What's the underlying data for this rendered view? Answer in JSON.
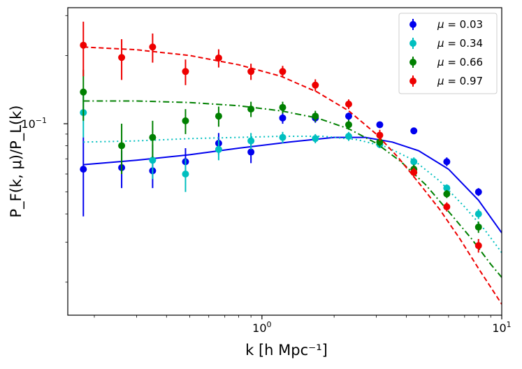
{
  "chart_data": {
    "type": "scatter",
    "title": "",
    "xlabel": "k [h Mpc⁻¹]",
    "ylabel": "P_F(k, μ)/P_L(k)",
    "xscale": "log",
    "yscale": "log",
    "xlim": [
      0.155,
      10
    ],
    "ylim": [
      0.0143,
      0.325
    ],
    "x_ticks": [
      {
        "value": 1,
        "base": "10",
        "exp": "0"
      },
      {
        "value": 10,
        "base": "10",
        "exp": "1"
      }
    ],
    "y_ticks": [
      {
        "value": 0.1,
        "base": "10",
        "exp": "−1"
      }
    ],
    "legend_position": "top-right",
    "series": [
      {
        "name": "μ = 0.03",
        "mu_label": "μ",
        "value_label": "= 0.03",
        "color": "#0000ee",
        "line_style": "solid",
        "x": [
          0.18,
          0.26,
          0.35,
          0.48,
          0.66,
          0.9,
          1.22,
          1.67,
          2.3,
          3.1,
          4.3,
          5.9,
          8.0
        ],
        "y": [
          0.063,
          0.064,
          0.062,
          0.068,
          0.082,
          0.075,
          0.106,
          0.106,
          0.108,
          0.099,
          0.093,
          0.068,
          0.05
        ],
        "err": [
          0.024,
          0.012,
          0.01,
          0.01,
          0.009,
          0.008,
          0.006,
          0.005,
          0.004,
          0.003,
          0.003,
          0.003,
          0.002
        ],
        "model_x": [
          0.18,
          0.3,
          0.5,
          0.8,
          1.3,
          2.0,
          2.7,
          3.5,
          4.5,
          6.0,
          8.0,
          10.0
        ],
        "model_y": [
          0.066,
          0.069,
          0.073,
          0.078,
          0.083,
          0.087,
          0.087,
          0.083,
          0.076,
          0.063,
          0.046,
          0.033
        ]
      },
      {
        "name": "μ = 0.34",
        "mu_label": "μ",
        "value_label": "= 0.34",
        "color": "#00bfbf",
        "line_style": "dotted",
        "x": [
          0.18,
          0.35,
          0.48,
          0.66,
          0.9,
          1.22,
          1.67,
          2.3,
          3.1,
          4.3,
          5.9,
          8.0
        ],
        "y": [
          0.112,
          0.069,
          0.06,
          0.077,
          0.084,
          0.087,
          0.086,
          0.088,
          0.081,
          0.068,
          0.052,
          0.04
        ],
        "err": [
          0.025,
          0.012,
          0.01,
          0.008,
          0.007,
          0.005,
          0.004,
          0.004,
          0.003,
          0.003,
          0.002,
          0.002
        ],
        "model_x": [
          0.18,
          0.3,
          0.5,
          0.8,
          1.2,
          1.8,
          2.5,
          3.3,
          4.3,
          5.5,
          7.0,
          8.5,
          10.0
        ],
        "model_y": [
          0.083,
          0.084,
          0.086,
          0.087,
          0.088,
          0.088,
          0.085,
          0.079,
          0.069,
          0.056,
          0.043,
          0.034,
          0.027
        ]
      },
      {
        "name": "μ = 0.66",
        "mu_label": "μ",
        "value_label": "= 0.66",
        "color": "#008000",
        "line_style": "dashdot",
        "x": [
          0.18,
          0.26,
          0.35,
          0.48,
          0.66,
          0.9,
          1.22,
          1.67,
          2.3,
          3.1,
          4.3,
          5.9,
          8.0
        ],
        "y": [
          0.138,
          0.08,
          0.087,
          0.103,
          0.108,
          0.116,
          0.118,
          0.108,
          0.099,
          0.083,
          0.063,
          0.049,
          0.035
        ],
        "err": [
          0.035,
          0.02,
          0.016,
          0.013,
          0.011,
          0.009,
          0.007,
          0.006,
          0.005,
          0.004,
          0.003,
          0.002,
          0.002
        ],
        "model_x": [
          0.18,
          0.3,
          0.5,
          0.8,
          1.2,
          1.7,
          2.3,
          3.0,
          3.8,
          4.8,
          6.0,
          7.5,
          9.0,
          10.0
        ],
        "model_y": [
          0.126,
          0.126,
          0.124,
          0.12,
          0.114,
          0.106,
          0.095,
          0.082,
          0.068,
          0.054,
          0.041,
          0.031,
          0.024,
          0.021
        ]
      },
      {
        "name": "μ = 0.97",
        "mu_label": "μ",
        "value_label": "= 0.97",
        "color": "#ee0000",
        "line_style": "dashed",
        "x": [
          0.18,
          0.26,
          0.35,
          0.48,
          0.66,
          0.9,
          1.22,
          1.67,
          2.3,
          3.1,
          4.3,
          5.9,
          8.0
        ],
        "y": [
          0.222,
          0.196,
          0.218,
          0.17,
          0.195,
          0.17,
          0.17,
          0.148,
          0.122,
          0.089,
          0.061,
          0.043,
          0.029
        ],
        "err": [
          0.06,
          0.04,
          0.032,
          0.022,
          0.018,
          0.014,
          0.01,
          0.009,
          0.006,
          0.005,
          0.003,
          0.002,
          0.002
        ],
        "model_x": [
          0.18,
          0.3,
          0.5,
          0.8,
          1.2,
          1.7,
          2.3,
          3.0,
          3.7,
          4.5,
          5.5,
          6.7,
          8.0,
          9.0,
          10.0
        ],
        "model_y": [
          0.218,
          0.212,
          0.2,
          0.182,
          0.162,
          0.138,
          0.114,
          0.09,
          0.071,
          0.055,
          0.042,
          0.031,
          0.023,
          0.019,
          0.016
        ]
      }
    ]
  }
}
